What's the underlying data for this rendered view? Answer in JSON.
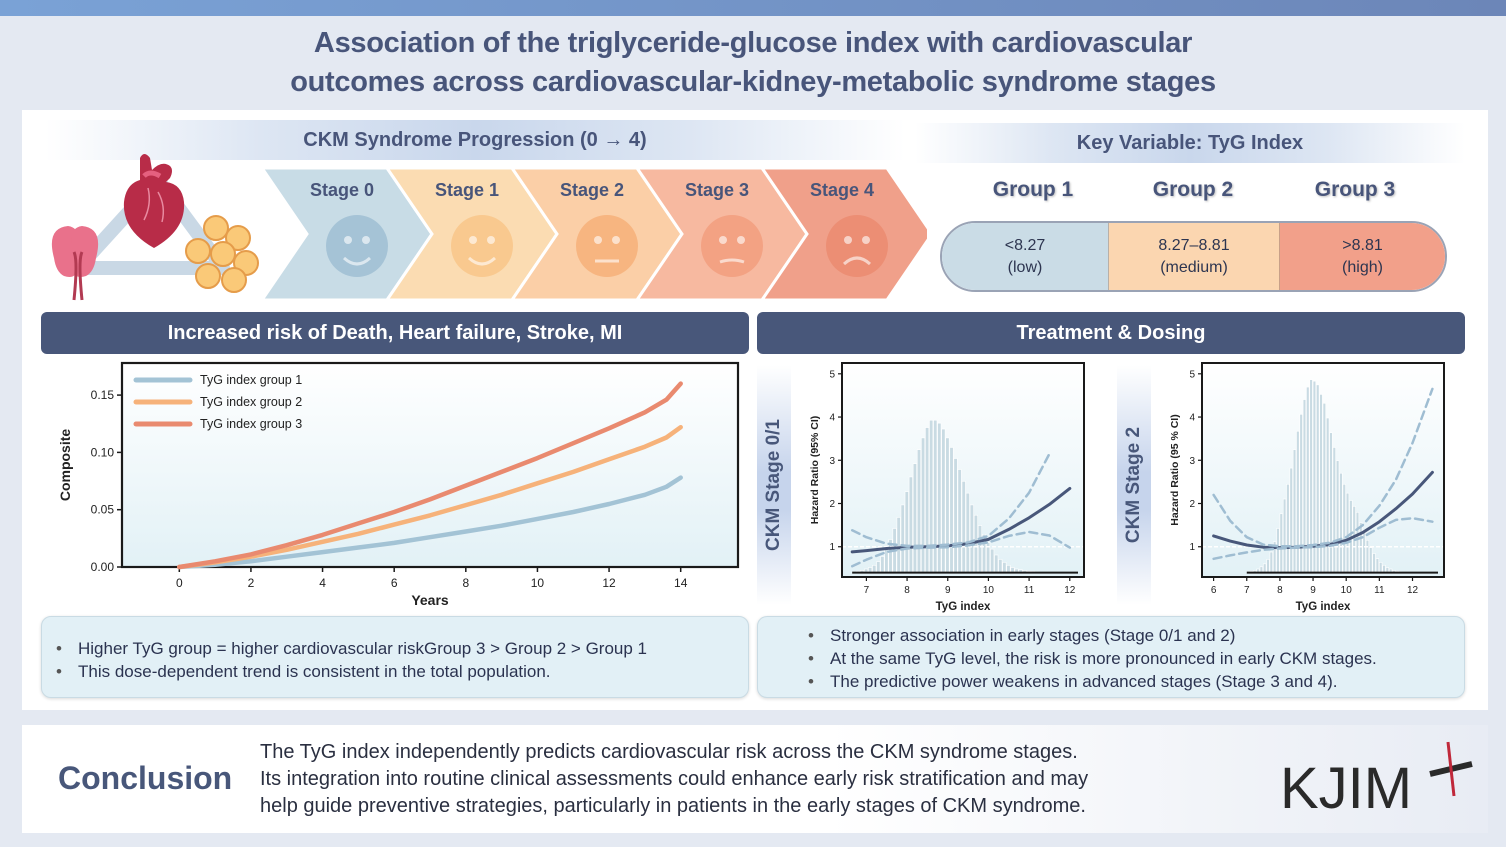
{
  "header": {
    "title_line1": "Association of the triglyceride-glucose index with cardiovascular",
    "title_line2": "outcomes across cardiovascular-kidney-metabolic syndrome stages"
  },
  "ckm": {
    "band_title": "CKM Syndrome Progression (0 → 4)",
    "organ_icons": [
      "heart-icon",
      "kidneys-icon",
      "adipose-cells-icon"
    ],
    "stages": [
      {
        "label": "Stage 0",
        "face": "smile",
        "color": "#c8dce6",
        "face_color": "#a5c3d6"
      },
      {
        "label": "Stage 1",
        "face": "smile",
        "color": "#fbdcb2",
        "face_color": "#f9c98f"
      },
      {
        "label": "Stage 2",
        "face": "neutral",
        "color": "#fbcfa7",
        "face_color": "#f7b580"
      },
      {
        "label": "Stage 3",
        "face": "slight-frown",
        "color": "#f7b9a0",
        "face_color": "#f3a283"
      },
      {
        "label": "Stage 4",
        "face": "frown",
        "color": "#f0a08a",
        "face_color": "#ec8e74"
      }
    ]
  },
  "tyg": {
    "band_title": "Key Variable: TyG Index",
    "groups": [
      {
        "label": "Group 1",
        "range": "<8.27",
        "level": "(low)",
        "color": "#cadce6"
      },
      {
        "label": "Group 2",
        "range": "8.27–8.81",
        "level": "(medium)",
        "color": "#fbd6b0"
      },
      {
        "label": "Group 3",
        "range": ">8.81",
        "level": "(high)",
        "color": "#f2a08a"
      }
    ]
  },
  "sections": {
    "left_head": "Increased risk of Death, Heart failure, Stroke, MI",
    "right_head": "Treatment & Dosing",
    "hr_stage_labels": [
      "CKM Stage 0/1",
      "CKM Stage 2"
    ]
  },
  "bullets": {
    "left": [
      "Higher TyG group = higher cardiovascular riskGroup 3 > Group 2 > Group 1",
      "This dose-dependent trend is consistent in the total population."
    ],
    "right": [
      "Stronger association in early stages (Stage 0/1 and 2)",
      "At the same TyG level, the risk is more pronounced in early CKM stages.",
      "The predictive power weakens in advanced stages (Stage 3 and 4)."
    ]
  },
  "conclusion": {
    "title": "Conclusion",
    "lines": [
      "The TyG index independently predicts cardiovascular risk across the CKM syndrome stages.",
      "Its integration into routine clinical assessments could enhance early risk stratification and may",
      "help guide preventive strategies, particularly in patients in the early stages of CKM syndrome."
    ]
  },
  "logo": {
    "text": "KJIM"
  },
  "chart_data": [
    {
      "type": "line",
      "title": "",
      "xlabel": "Years",
      "ylabel": "Composite",
      "xlim": [
        -1.6,
        15.6
      ],
      "ylim": [
        0,
        0.178
      ],
      "xticks": [
        0,
        2,
        4,
        6,
        8,
        10,
        12,
        14
      ],
      "yticks": [
        0.0,
        0.05,
        0.1,
        0.15
      ],
      "ytick_labels": [
        "0.00",
        "0.05",
        "0.10",
        "0.15"
      ],
      "legend_position": "top-left",
      "grid": false,
      "x": [
        0,
        1,
        2,
        3,
        4,
        5,
        6,
        7,
        8,
        9,
        10,
        11,
        12,
        13,
        13.6,
        14
      ],
      "series": [
        {
          "name": "TyG index group 1",
          "color": "#a3c3d5",
          "values": [
            0.0,
            0.002,
            0.005,
            0.009,
            0.013,
            0.017,
            0.021,
            0.026,
            0.031,
            0.036,
            0.042,
            0.048,
            0.055,
            0.063,
            0.07,
            0.078
          ]
        },
        {
          "name": "TyG index group 2",
          "color": "#f6b27a",
          "values": [
            0.0,
            0.004,
            0.009,
            0.015,
            0.022,
            0.029,
            0.037,
            0.045,
            0.054,
            0.063,
            0.073,
            0.083,
            0.094,
            0.105,
            0.113,
            0.122
          ]
        },
        {
          "name": "TyG index group 3",
          "color": "#e98a6f",
          "values": [
            0.0,
            0.005,
            0.011,
            0.019,
            0.028,
            0.038,
            0.048,
            0.059,
            0.071,
            0.083,
            0.095,
            0.108,
            0.121,
            0.135,
            0.146,
            0.16
          ]
        }
      ]
    },
    {
      "type": "line",
      "title": "CKM Stage 0/1",
      "xlabel": "TyG index",
      "ylabel": "Hazard Ratio (95% CI)",
      "xlim": [
        6.4,
        12.35
      ],
      "ylim": [
        0.3,
        5.25
      ],
      "xticks": [
        7,
        8,
        9,
        10,
        11,
        12
      ],
      "yticks": [
        1,
        2,
        3,
        4,
        5
      ],
      "reference_line": 1,
      "histogram": {
        "x_start": 6.65,
        "bin_width": 0.1,
        "heights": [
          0.01,
          0.02,
          0.03,
          0.05,
          0.07,
          0.1,
          0.15,
          0.22,
          0.32,
          0.45,
          0.6,
          0.75,
          0.92,
          1.1,
          1.3,
          1.48,
          1.67,
          1.83,
          1.97,
          2.07,
          2.07,
          2.03,
          1.95,
          1.83,
          1.7,
          1.55,
          1.4,
          1.24,
          1.08,
          0.92,
          0.78,
          0.64,
          0.52,
          0.41,
          0.32,
          0.24,
          0.18,
          0.14,
          0.1,
          0.07,
          0.05,
          0.04,
          0.03,
          0.02,
          0.02,
          0.01
        ]
      },
      "series": [
        {
          "name": "HR",
          "style": "solid",
          "color": "#48577a",
          "x": [
            6.65,
            7,
            7.5,
            8,
            8.5,
            9,
            9.5,
            10,
            10.5,
            11,
            11.5,
            12
          ],
          "values": [
            0.88,
            0.91,
            0.96,
            0.99,
            1.0,
            1.02,
            1.07,
            1.17,
            1.4,
            1.67,
            1.98,
            2.35
          ]
        },
        {
          "name": "Upper 95% CI",
          "style": "dashed",
          "color": "#9fbdd2",
          "x": [
            6.65,
            7,
            7.5,
            8,
            8.5,
            9,
            9.5,
            10,
            10.5,
            11,
            11.5
          ],
          "values": [
            1.38,
            1.22,
            1.07,
            1.02,
            1.02,
            1.05,
            1.1,
            1.25,
            1.65,
            2.25,
            3.15
          ]
        },
        {
          "name": "Lower 95% CI",
          "style": "dashed",
          "color": "#9fbdd2",
          "x": [
            6.65,
            7,
            7.5,
            8,
            8.5,
            9,
            9.5,
            10,
            10.5,
            11,
            11.5,
            12
          ],
          "values": [
            0.55,
            0.7,
            0.88,
            0.96,
            0.98,
            0.99,
            1.03,
            1.1,
            1.25,
            1.34,
            1.26,
            0.98
          ]
        }
      ]
    },
    {
      "type": "line",
      "title": "CKM Stage 2",
      "xlabel": "TyG index",
      "ylabel": "Hazard Ratio (95 % CI)",
      "xlim": [
        5.65,
        12.95
      ],
      "ylim": [
        0.3,
        5.25
      ],
      "xticks": [
        6,
        7,
        8,
        9,
        10,
        11,
        12
      ],
      "yticks": [
        1,
        2,
        3,
        4,
        5
      ],
      "reference_line": 1,
      "histogram": {
        "x_start": 7.0,
        "bin_width": 0.1,
        "heights": [
          0.01,
          0.02,
          0.03,
          0.05,
          0.08,
          0.12,
          0.18,
          0.28,
          0.42,
          0.6,
          0.8,
          1.0,
          1.2,
          1.42,
          1.67,
          1.92,
          2.15,
          2.35,
          2.52,
          2.62,
          2.6,
          2.55,
          2.42,
          2.3,
          2.1,
          1.9,
          1.7,
          1.52,
          1.35,
          1.2,
          1.08,
          0.98,
          0.9,
          0.82,
          0.68,
          0.55,
          0.44,
          0.34,
          0.26,
          0.19,
          0.14,
          0.1,
          0.07,
          0.05,
          0.03,
          0.02,
          0.01
        ]
      },
      "series": [
        {
          "name": "HR",
          "style": "solid",
          "color": "#48577a",
          "x": [
            6,
            6.5,
            7,
            7.5,
            8,
            8.5,
            9,
            9.5,
            10,
            10.5,
            11,
            11.5,
            12,
            12.6
          ],
          "values": [
            1.25,
            1.13,
            1.04,
            0.99,
            0.98,
            0.99,
            1.01,
            1.05,
            1.15,
            1.33,
            1.58,
            1.88,
            2.22,
            2.72
          ]
        },
        {
          "name": "Upper 95% CI",
          "style": "dashed",
          "color": "#9fbdd2",
          "x": [
            6,
            6.5,
            7,
            7.5,
            8,
            8.5,
            9,
            9.5,
            10,
            10.5,
            11,
            11.5,
            12,
            12.6
          ],
          "values": [
            2.2,
            1.6,
            1.22,
            1.05,
            1.01,
            1.01,
            1.04,
            1.09,
            1.22,
            1.5,
            1.95,
            2.55,
            3.4,
            4.65
          ]
        },
        {
          "name": "Lower 95% CI",
          "style": "dashed",
          "color": "#9fbdd2",
          "x": [
            6,
            6.5,
            7,
            7.5,
            8,
            8.5,
            9,
            9.5,
            10,
            10.5,
            11,
            11.5,
            12,
            12.6
          ],
          "values": [
            0.72,
            0.8,
            0.87,
            0.93,
            0.96,
            0.98,
            0.99,
            1.02,
            1.09,
            1.22,
            1.44,
            1.62,
            1.66,
            1.58
          ]
        }
      ]
    }
  ]
}
